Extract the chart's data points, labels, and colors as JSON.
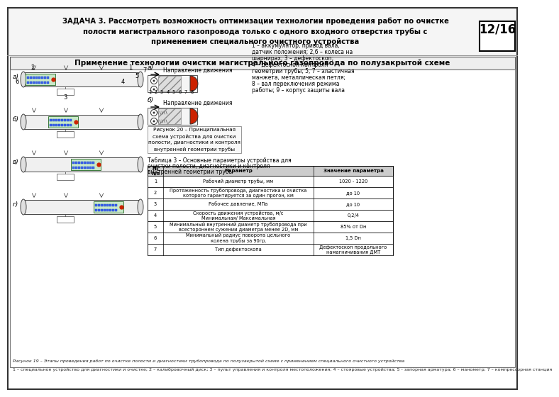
{
  "title_line1": "ЗАДАЧА 3. Рассмотреть возможность оптимизации технологии проведения работ по очистке",
  "title_line2": "полости магистрального газопровода только с одного входного отверстия трубы с",
  "title_line3": "применением специального очистного устройства",
  "slide_number": "12/16",
  "section_title": "Применение технологии очистки магистрального газопровода по полузакрытой схеме",
  "right_text_lines": [
    "1 – аккумулятор, привод вала,",
    "датчик положения; 2,6 – колеса на",
    "шарнирах; 3 – дефектоскоп;",
    "4 – дефектоскоп контроля",
    "геометрии трубы; 5, 7 – эластичная",
    "манжета, металлическая петля;",
    "8 – вал переключения режима",
    "работы; 9 – корпус защиты вала"
  ],
  "figure_caption_lines": [
    "Рисунок 20 – Принципиальная",
    "схема устройства для очистки",
    "полости, диагностики и контроля",
    "внутренней геометрии трубы"
  ],
  "table_caption_lines": [
    "Таблица 3 – Основные параметры устройства для",
    "очистки полости, диагностики и контроля",
    "внутренней геометрии трубы"
  ],
  "table_col_headers": [
    "№\nп/п",
    "Параметр",
    "Значение параметра"
  ],
  "table_rows": [
    [
      "1",
      "Рабочий диаметр трубы, мм",
      "1020 - 1220"
    ],
    [
      "2",
      "Протяженность трубопровода, диагностика и очистка\nкоторого гарантируется за один прогон, км",
      "до 10"
    ],
    [
      "3",
      "Рабочее давление, МПа",
      "до 10"
    ],
    [
      "4",
      "Скорость движения устройства, м/с\nМинимальная/ Максимальная",
      "0,2/4"
    ],
    [
      "5",
      "Минимальный внутренний диаметр трубопровода при\nвсестороннем сужении диаметра менее 2D, мм",
      "85% от Dн"
    ],
    [
      "6",
      "Минимальный радиус поворота цельного\nколена трубы за 90гр.",
      "1,5 Dн"
    ],
    [
      "7",
      "Тип дефектоскопа",
      "Дефектоскоп продольного\nнамагничивания ДМТ"
    ]
  ],
  "bottom_text1": "1 – специальное устройство для диагностики и очистке; 2 – калибровочный диск; 3 – пульт управления и контроля местоположения; 4 – стояровые устройства; 5 - запорная арматура; 6 – манометр; 7 – компрессорная станция",
  "bottom_text2": "Рисунок 19 – Этапы проведения работ по очистке полости и диагностики трубопровода по полузакрытой схеме с применением специального очистного устройства",
  "bg_color": "#ffffff",
  "table_header_bg": "#cccccc",
  "diag_labels": [
    "а)",
    "б)",
    "в)",
    "г)"
  ],
  "diag_green": "#c8e8c8",
  "diag_blue": "#4466ee",
  "diag_red": "#cc2200",
  "pipe_edge": "#444444",
  "pipe_fill": "#f0f0f0"
}
